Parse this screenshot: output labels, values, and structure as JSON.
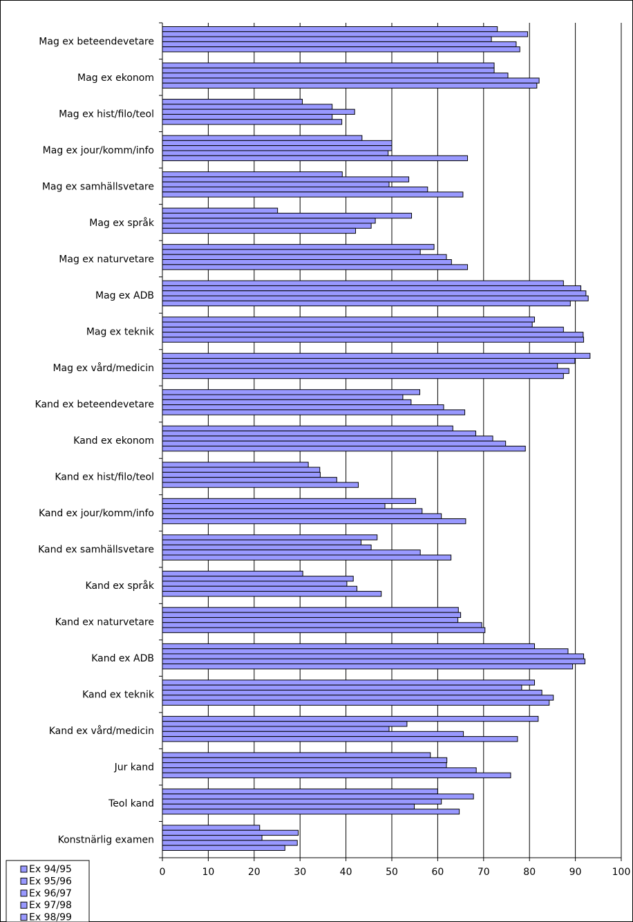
{
  "chart_data": {
    "type": "bar",
    "orientation": "horizontal",
    "xlim": [
      0,
      100
    ],
    "xticks": [
      "0",
      "10",
      "20",
      "30",
      "40",
      "50",
      "60",
      "70",
      "80",
      "90",
      "100"
    ],
    "grid": true,
    "legend_position": "bottom-left",
    "bar_color": "#9999ff",
    "categories": [
      "Mag ex beteendevetare",
      "Mag ex ekonom",
      "Mag ex hist/filo/teol",
      "Mag ex jour/komm/info",
      "Mag ex samhällsvetare",
      "Mag ex språk",
      "Mag ex naturvetare",
      "Mag ex ADB",
      "Mag ex teknik",
      "Mag ex vård/medicin",
      "Kand ex beteendevetare",
      "Kand ex ekonom",
      "Kand ex hist/filo/teol",
      "Kand ex jour/komm/info",
      "Kand ex samhällsvetare",
      "Kand ex språk",
      "Kand ex naturvetare",
      "Kand ex ADB",
      "Kand ex teknik",
      "Kand ex vård/medicin",
      "Jur kand",
      "Teol kand",
      "Konstnärlig examen"
    ],
    "series": [
      {
        "name": "Ex 94/95",
        "values": [
          73,
          72.3,
          30.5,
          43.5,
          39.2,
          25.1,
          59.2,
          87.4,
          81.1,
          93.2,
          56.1,
          63.3,
          31.8,
          55.2,
          46.8,
          30.6,
          64.5,
          81.1,
          81.1,
          81.9,
          58.4,
          60.0,
          21.2
        ]
      },
      {
        "name": "Ex 95/96",
        "values": [
          79.6,
          72.3,
          37.0,
          50.0,
          53.7,
          54.3,
          56.2,
          91.2,
          80.6,
          89.9,
          52.4,
          68.3,
          34.3,
          48.5,
          43.3,
          41.6,
          65.0,
          88.4,
          78.3,
          53.3,
          62.0,
          67.8,
          29.6
        ]
      },
      {
        "name": "Ex 96/97",
        "values": [
          71.7,
          75.3,
          41.9,
          50.0,
          49.4,
          46.4,
          61.9,
          92.3,
          87.4,
          86.1,
          54.2,
          72.0,
          34.4,
          56.6,
          45.5,
          40.2,
          64.4,
          91.8,
          82.7,
          49.4,
          61.9,
          60.8,
          21.7
        ]
      },
      {
        "name": "Ex 97/98",
        "values": [
          77.1,
          82.1,
          37.0,
          49.2,
          57.8,
          45.5,
          63.0,
          92.8,
          91.7,
          88.6,
          61.3,
          74.8,
          38.0,
          60.8,
          56.2,
          42.4,
          69.6,
          92.1,
          85.2,
          65.6,
          68.4,
          54.9,
          29.4
        ]
      },
      {
        "name": "Ex 98/99",
        "values": [
          77.9,
          81.6,
          39.1,
          66.5,
          65.5,
          42.1,
          66.5,
          88.9,
          91.8,
          87.4,
          65.9,
          79.1,
          42.7,
          66.1,
          62.9,
          47.7,
          70.3,
          89.4,
          84.3,
          77.4,
          75.9,
          64.7,
          26.7
        ]
      }
    ]
  }
}
